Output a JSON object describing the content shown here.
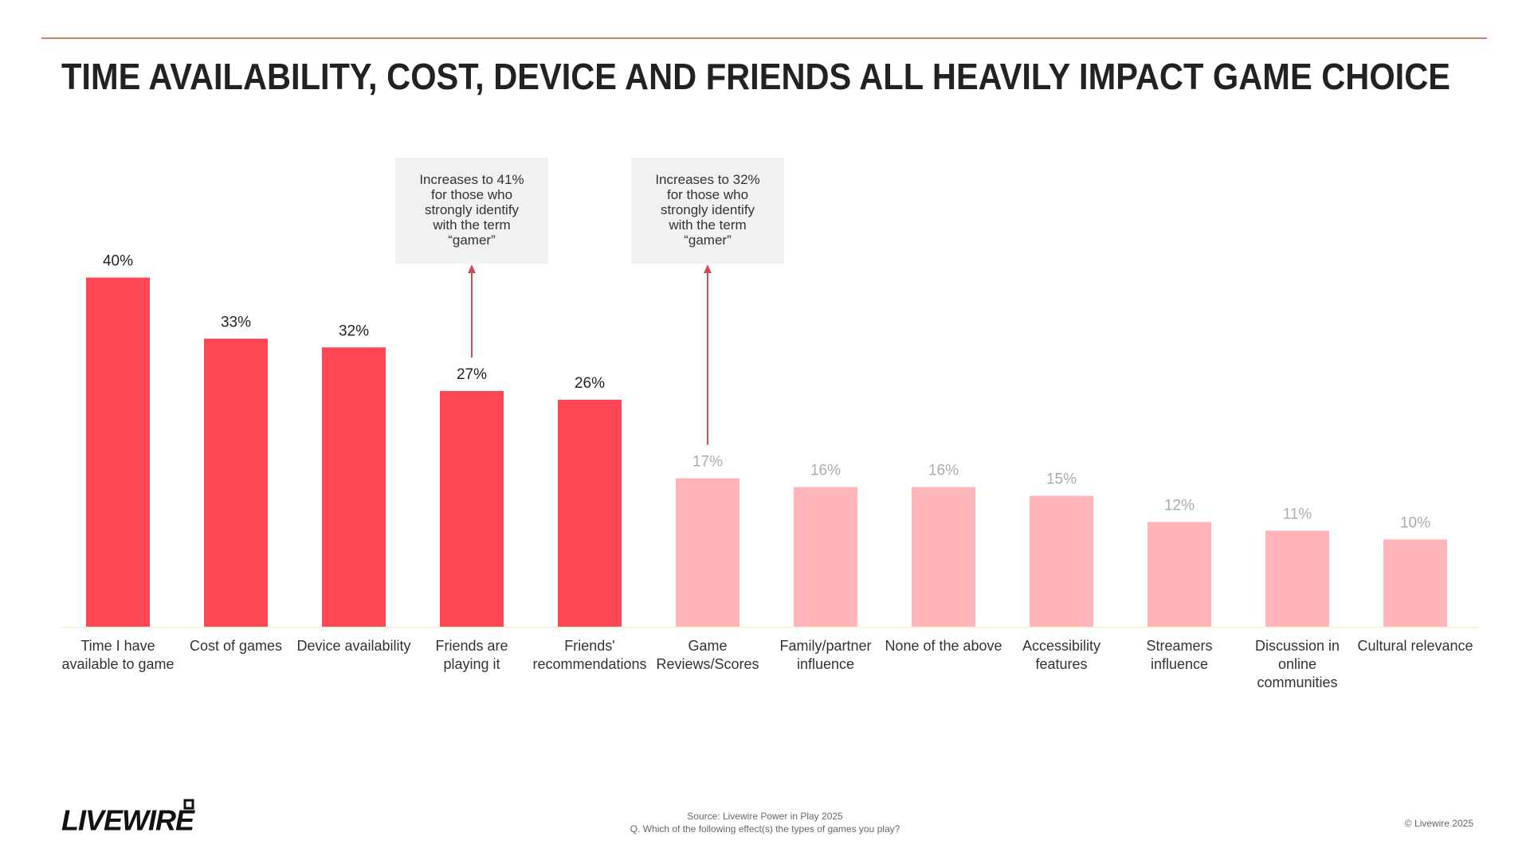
{
  "chart_data": {
    "type": "bar",
    "title": "TIME AVAILABILITY, COST, DEVICE AND FRIENDS ALL HEAVILY IMPACT GAME CHOICE",
    "categories": [
      "Time I have available to game",
      "Cost of games",
      "Device availability",
      "Friends are playing it",
      "Friends' recommendations",
      "Game Reviews/Scores",
      "Family/partner influence",
      "None of the above",
      "Accessibility features",
      "Streamers influence",
      "Discussion in online communities",
      "Cultural relevance"
    ],
    "values": [
      40,
      33,
      32,
      27,
      26,
      17,
      16,
      16,
      15,
      12,
      11,
      10
    ],
    "value_labels": [
      "40%",
      "33%",
      "32%",
      "27%",
      "26%",
      "17%",
      "16%",
      "16%",
      "15%",
      "12%",
      "11%",
      "10%"
    ],
    "colors": [
      "#ff4654",
      "#ff4654",
      "#ff4654",
      "#ff4654",
      "#ff4654",
      "#ffb4ba",
      "#ffb4ba",
      "#ffb4ba",
      "#ffb4ba",
      "#ffb4ba",
      "#ffb4ba",
      "#ffb4ba"
    ],
    "value_label_colors": [
      "#222222",
      "#222222",
      "#222222",
      "#222222",
      "#222222",
      "#aaaaaa",
      "#aaaaaa",
      "#aaaaaa",
      "#aaaaaa",
      "#aaaaaa",
      "#aaaaaa",
      "#aaaaaa"
    ],
    "annotations": [
      {
        "text": "Increases to 41% for those who strongly identify with the term “gamer”",
        "category": "Friends are playing it"
      },
      {
        "text": "Increases to 32% for those who strongly identify with the term “gamer”",
        "category": "Game Reviews/Scores"
      }
    ]
  },
  "footer": {
    "logo": "LIVEWIRE",
    "source": "Source: Livewire Power in Play 2025",
    "question": "Q. Which of the following effect(s) the types of games you play?",
    "copyright": "© Livewire 2025"
  }
}
